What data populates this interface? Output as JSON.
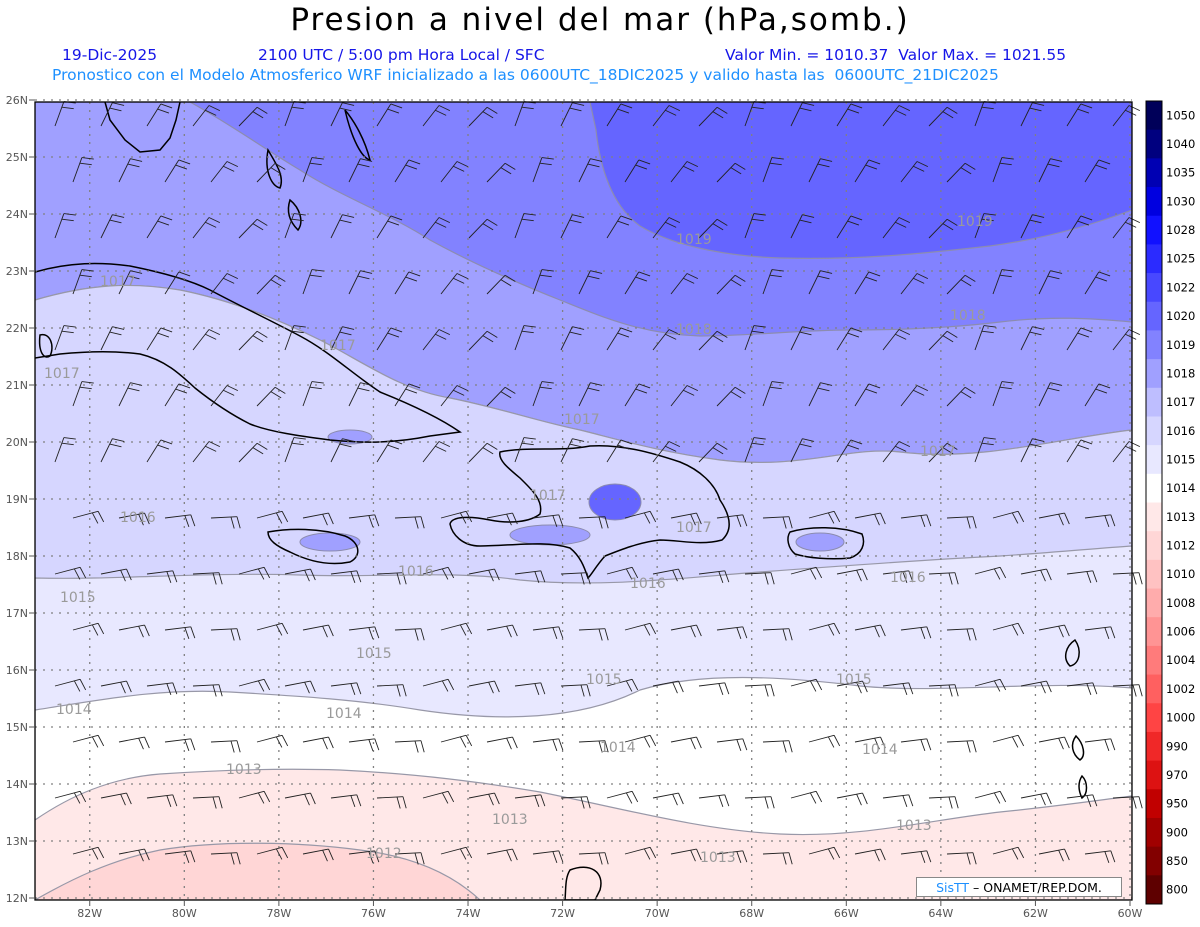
{
  "title": "Presion a nivel del mar (hPa,somb.)",
  "subtitle": {
    "date": "19-Dic-2025",
    "time": "2100 UTC / 5:00 pm Hora Local / SFC",
    "min_max": "Valor Min. = 1010.37  Valor Max. = 1021.55",
    "model_info": "Pronostico con el Modelo Atmosferico WRF inicializado a las 0600UTC_18DIC2025 y valido hasta las  0600UTC_21DIC2025"
  },
  "axes": {
    "lat_labels": [
      "26N",
      "25N",
      "24N",
      "23N",
      "22N",
      "21N",
      "20N",
      "19N",
      "18N",
      "17N",
      "16N",
      "15N",
      "14N",
      "13N",
      "12N"
    ],
    "lon_labels": [
      "82W",
      "80W",
      "78W",
      "76W",
      "74W",
      "72W",
      "70W",
      "68W",
      "66W",
      "64W",
      "62W",
      "60W"
    ]
  },
  "colorbar": {
    "levels": [
      "1050",
      "1040",
      "1035",
      "1030",
      "1028",
      "1025",
      "1022",
      "1020",
      "1019",
      "1018",
      "1017",
      "1016",
      "1015",
      "1014",
      "1013",
      "1012",
      "1010",
      "1008",
      "1006",
      "1004",
      "1002",
      "1000",
      "990",
      "970",
      "950",
      "900",
      "850",
      "800"
    ],
    "colors": [
      "#000059",
      "#00007f",
      "#0000b3",
      "#0000e0",
      "#1111ff",
      "#2b2bff",
      "#4848ff",
      "#6565ff",
      "#8282ff",
      "#a0a0ff",
      "#bebeff",
      "#d6d6ff",
      "#e8e8ff",
      "#ffffff",
      "#ffe8e8",
      "#ffd6d6",
      "#ffc2c2",
      "#ffacac",
      "#ff9494",
      "#ff7b7b",
      "#ff6060",
      "#ff4444",
      "#f02828",
      "#dd1212",
      "#c10000",
      "#a00000",
      "#820000",
      "#5e0000"
    ]
  },
  "contour_labels": [
    "1019",
    "1019",
    "1018",
    "1018",
    "1017",
    "1017",
    "1017",
    "1017",
    "1017",
    "1017",
    "1017",
    "1016",
    "1016",
    "1016",
    "1016",
    "1015",
    "1015",
    "1015",
    "1015",
    "1014",
    "1014",
    "1014",
    "1014",
    "1013",
    "1013",
    "1013",
    "1013",
    "1012"
  ],
  "credit": {
    "brand": "SisTT",
    "text": "– ONAMET/REP.DOM."
  }
}
